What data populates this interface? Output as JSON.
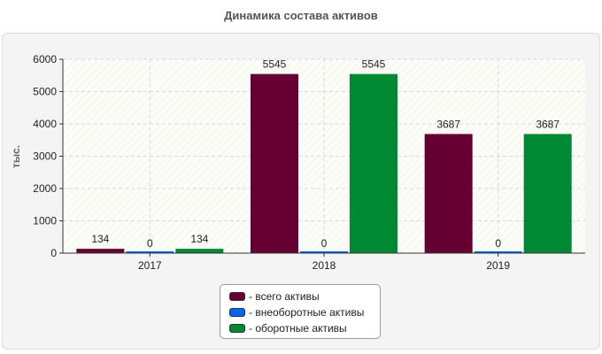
{
  "title": "Динамика состава активов",
  "chart_data": {
    "type": "bar",
    "title": "Динамика состава активов",
    "xlabel": "",
    "ylabel": "тыс.",
    "categories": [
      "2017",
      "2018",
      "2019"
    ],
    "ylim": [
      0,
      6000
    ],
    "yticks": [
      0,
      1000,
      2000,
      3000,
      4000,
      5000,
      6000
    ],
    "grid": true,
    "legend_position": "bottom",
    "series": [
      {
        "name": "всего активы",
        "color": "#660033",
        "values": [
          134,
          5545,
          3687
        ]
      },
      {
        "name": "внеоборотные активы",
        "color": "#0066ee",
        "values": [
          0,
          0,
          0
        ]
      },
      {
        "name": "оборотные активы",
        "color": "#008833",
        "values": [
          134,
          5545,
          3687
        ]
      }
    ]
  },
  "legend": {
    "items": [
      {
        "label": "- всего активы",
        "color": "#660033"
      },
      {
        "label": "- внеоборотные активы",
        "color": "#0066ee"
      },
      {
        "label": "- оборотные активы",
        "color": "#008833"
      }
    ]
  }
}
